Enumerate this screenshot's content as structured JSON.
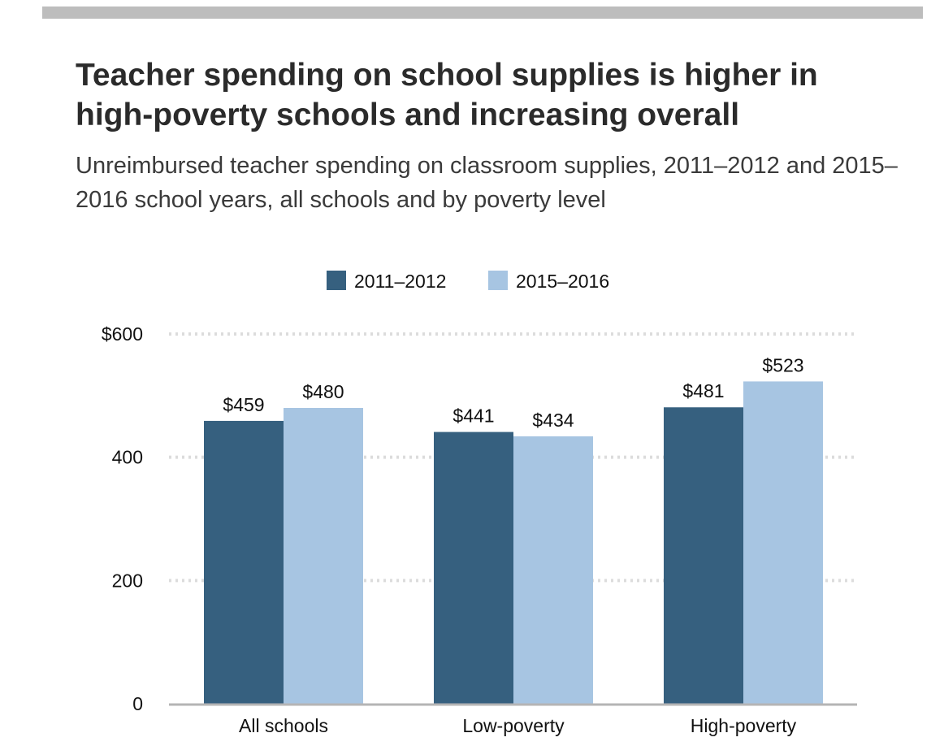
{
  "header": {
    "title": "Teacher spending on school supplies is higher in high-poverty schools and increasing overall",
    "subtitle": "Unreimbursed teacher spending on classroom supplies, 2011–2012 and 2015–2016 school years, all schools and by poverty level"
  },
  "chart_data": {
    "type": "bar",
    "title": "Teacher spending on school supplies is higher in high-poverty schools and increasing overall",
    "subtitle": "Unreimbursed teacher spending on classroom supplies, 2011–2012 and 2015–2016 school years, all schools and by poverty level",
    "categories": [
      "All schools",
      "Low-poverty",
      "High-poverty"
    ],
    "series": [
      {
        "name": "2011–2012",
        "values": [
          459,
          441,
          481
        ],
        "labels": [
          "$459",
          "$441",
          "$481"
        ],
        "color": "#36607f"
      },
      {
        "name": "2015–2016",
        "values": [
          480,
          434,
          523
        ],
        "labels": [
          "$480",
          "$434",
          "$523"
        ],
        "color": "#a7c5e2"
      }
    ],
    "ylim": [
      0,
      600
    ],
    "yticks": [
      0,
      200,
      400,
      600
    ],
    "ytick_labels": [
      "0",
      "200",
      "400",
      "$600"
    ],
    "xlabel": "",
    "ylabel": "",
    "grid": true,
    "legend_position": "top-center"
  }
}
